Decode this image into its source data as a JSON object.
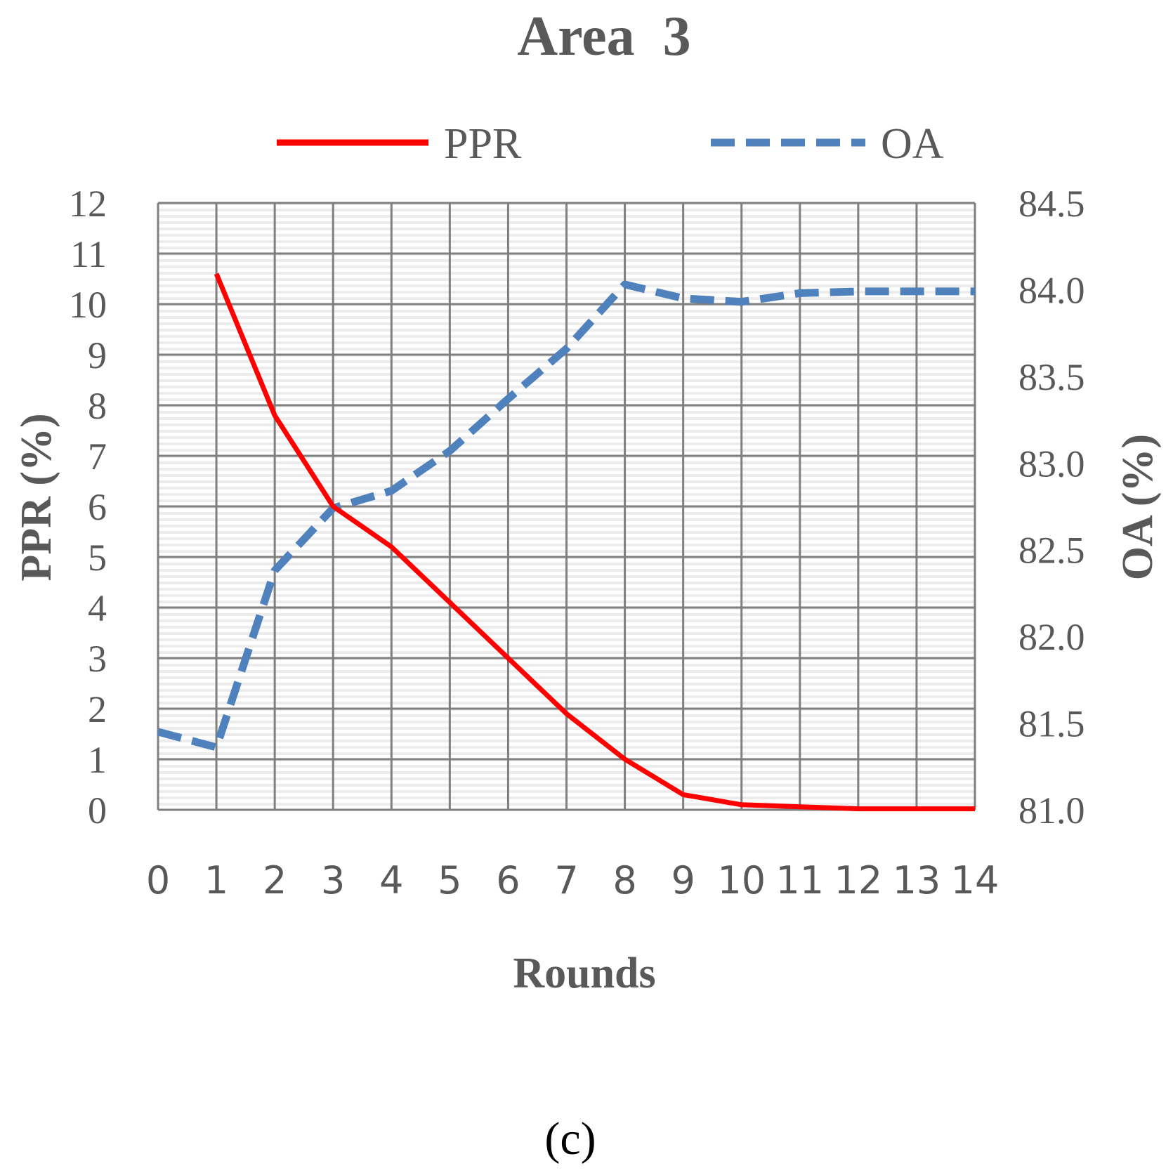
{
  "chart_data": {
    "type": "line",
    "title": "Area  3",
    "caption": "(c)",
    "xlabel": "Rounds",
    "ylabel_left": "PPR (%)",
    "ylabel_right": "OA (%)",
    "x": [
      0,
      1,
      2,
      3,
      4,
      5,
      6,
      7,
      8,
      9,
      10,
      11,
      12,
      13,
      14
    ],
    "x_tick_labels": [
      "0",
      "1",
      "2",
      "3",
      "4",
      "5",
      "6",
      "7",
      "8",
      "9",
      "10",
      "11",
      "12",
      "13",
      "14"
    ],
    "ylim_left": [
      0,
      12
    ],
    "y_ticks_left": [
      "0",
      "1",
      "2",
      "3",
      "4",
      "5",
      "6",
      "7",
      "8",
      "9",
      "10",
      "11",
      "12"
    ],
    "ylim_right": [
      81.0,
      84.5
    ],
    "y_ticks_right": [
      "81.0",
      "81.5",
      "82.0",
      "82.5",
      "83.0",
      "83.5",
      "84.0",
      "84.5"
    ],
    "grid": true,
    "legend_position": "top",
    "series": [
      {
        "name": "PPR",
        "axis": "left",
        "style": "solid",
        "color": "#ff0000",
        "x": [
          1,
          2,
          3,
          4,
          5,
          6,
          7,
          8,
          9,
          10,
          11,
          12,
          13,
          14
        ],
        "values": [
          10.6,
          7.8,
          6.0,
          5.2,
          4.1,
          3.0,
          1.9,
          1.0,
          0.3,
          0.1,
          0.06,
          0.02,
          0.02,
          0.02
        ]
      },
      {
        "name": "OA",
        "axis": "right",
        "style": "dashed",
        "color": "#4f81bd",
        "x": [
          0,
          1,
          2,
          3,
          4,
          5,
          6,
          7,
          8,
          9,
          10,
          11,
          12,
          13,
          14
        ],
        "values": [
          81.45,
          81.36,
          82.38,
          82.74,
          82.84,
          83.07,
          83.37,
          83.66,
          84.03,
          83.95,
          83.93,
          83.98,
          83.99,
          83.99,
          83.99
        ]
      }
    ]
  }
}
